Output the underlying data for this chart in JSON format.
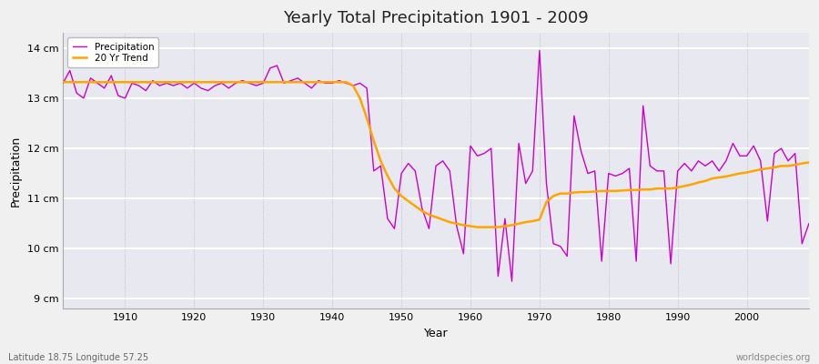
{
  "title": "Yearly Total Precipitation 1901 - 2009",
  "xlabel": "Year",
  "ylabel": "Precipitation",
  "lat_lon_label": "Latitude 18.75 Longitude 57.25",
  "worldspecies_label": "worldspecies.org",
  "precip_color": "#CC00CC",
  "trend_color": "#FFA500",
  "plot_bg_color": "#E8E8F0",
  "fig_bg_color": "#F0F0F0",
  "ylim": [
    8.8,
    14.3
  ],
  "yticks": [
    9,
    10,
    11,
    12,
    13,
    14
  ],
  "ytick_labels": [
    "9 cm",
    "10 cm",
    "11 cm",
    "12 cm",
    "13 cm",
    "14 cm"
  ],
  "xticks": [
    1910,
    1920,
    1930,
    1940,
    1950,
    1960,
    1970,
    1980,
    1990,
    2000
  ],
  "years": [
    1901,
    1902,
    1903,
    1904,
    1905,
    1906,
    1907,
    1908,
    1909,
    1910,
    1911,
    1912,
    1913,
    1914,
    1915,
    1916,
    1917,
    1918,
    1919,
    1920,
    1921,
    1922,
    1923,
    1924,
    1925,
    1926,
    1927,
    1928,
    1929,
    1930,
    1931,
    1932,
    1933,
    1934,
    1935,
    1936,
    1937,
    1938,
    1939,
    1940,
    1941,
    1942,
    1943,
    1944,
    1945,
    1946,
    1947,
    1948,
    1949,
    1950,
    1951,
    1952,
    1953,
    1954,
    1955,
    1956,
    1957,
    1958,
    1959,
    1960,
    1961,
    1962,
    1963,
    1964,
    1965,
    1966,
    1967,
    1968,
    1969,
    1970,
    1971,
    1972,
    1973,
    1974,
    1975,
    1976,
    1977,
    1978,
    1979,
    1980,
    1981,
    1982,
    1983,
    1984,
    1985,
    1986,
    1987,
    1988,
    1989,
    1990,
    1991,
    1992,
    1993,
    1994,
    1995,
    1996,
    1997,
    1998,
    1999,
    2000,
    2001,
    2002,
    2003,
    2004,
    2005,
    2006,
    2007,
    2008,
    2009
  ],
  "precip": [
    13.3,
    13.55,
    13.1,
    13.0,
    13.4,
    13.3,
    13.2,
    13.45,
    13.05,
    13.0,
    13.3,
    13.25,
    13.15,
    13.35,
    13.25,
    13.3,
    13.25,
    13.3,
    13.2,
    13.3,
    13.2,
    13.15,
    13.25,
    13.3,
    13.2,
    13.3,
    13.35,
    13.3,
    13.25,
    13.3,
    13.6,
    13.65,
    13.3,
    13.35,
    13.4,
    13.3,
    13.2,
    13.35,
    13.3,
    13.3,
    13.35,
    13.3,
    13.25,
    13.3,
    13.2,
    11.55,
    11.65,
    10.6,
    10.4,
    11.5,
    11.7,
    11.55,
    10.8,
    10.4,
    11.65,
    11.75,
    11.55,
    10.45,
    9.9,
    12.05,
    11.85,
    11.9,
    12.0,
    9.45,
    10.6,
    9.35,
    12.1,
    11.3,
    11.55,
    13.95,
    11.3,
    10.1,
    10.05,
    9.85,
    12.65,
    11.95,
    11.5,
    11.55,
    9.75,
    11.5,
    11.45,
    11.5,
    11.6,
    9.75,
    12.85,
    11.65,
    11.55,
    11.55,
    9.7,
    11.55,
    11.7,
    11.55,
    11.75,
    11.65,
    11.75,
    11.55,
    11.75,
    12.1,
    11.85,
    11.85,
    12.05,
    11.75,
    10.55,
    11.9,
    12.0,
    11.75,
    11.9,
    10.1,
    10.5
  ],
  "trend": [
    13.32,
    13.32,
    13.32,
    13.32,
    13.32,
    13.32,
    13.32,
    13.32,
    13.32,
    13.32,
    13.32,
    13.32,
    13.32,
    13.32,
    13.32,
    13.32,
    13.32,
    13.32,
    13.32,
    13.32,
    13.32,
    13.32,
    13.32,
    13.32,
    13.32,
    13.32,
    13.32,
    13.32,
    13.32,
    13.32,
    13.32,
    13.32,
    13.32,
    13.32,
    13.32,
    13.32,
    13.32,
    13.32,
    13.32,
    13.32,
    13.32,
    13.32,
    13.25,
    13.0,
    12.6,
    12.15,
    11.75,
    11.45,
    11.2,
    11.05,
    10.95,
    10.85,
    10.75,
    10.68,
    10.63,
    10.58,
    10.53,
    10.5,
    10.47,
    10.45,
    10.43,
    10.43,
    10.43,
    10.43,
    10.45,
    10.47,
    10.5,
    10.53,
    10.55,
    10.58,
    10.93,
    11.05,
    11.1,
    11.1,
    11.12,
    11.13,
    11.13,
    11.14,
    11.15,
    11.15,
    11.15,
    11.16,
    11.17,
    11.17,
    11.18,
    11.18,
    11.2,
    11.2,
    11.2,
    11.22,
    11.25,
    11.28,
    11.32,
    11.35,
    11.4,
    11.42,
    11.44,
    11.47,
    11.5,
    11.52,
    11.55,
    11.58,
    11.6,
    11.62,
    11.65,
    11.65,
    11.67,
    11.7,
    11.72
  ]
}
